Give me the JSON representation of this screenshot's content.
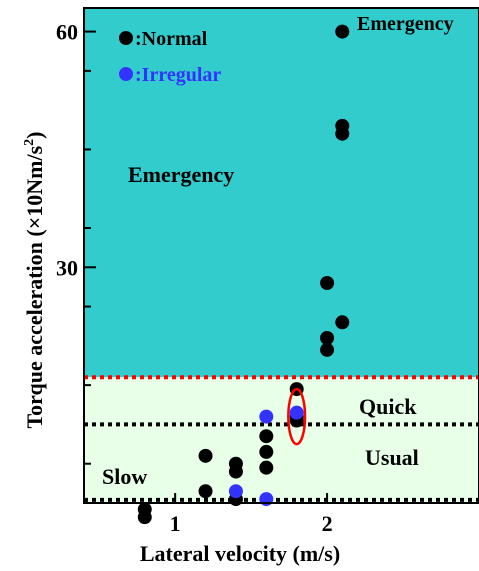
{
  "chart_data": {
    "type": "scatter",
    "xlabel": "Lateral velocity (m/s)",
    "ylabel_prefix": "Torque acceleration (×10Nm/s",
    "ylabel_sup": "2",
    "ylabel_suffix": ")",
    "xlim": [
      0.4,
      3.0
    ],
    "ylim": [
      0,
      63
    ],
    "x_ticks": [
      1,
      2
    ],
    "x_tick_labels": [
      "1",
      "2"
    ],
    "y_ticks": [
      30,
      60
    ],
    "y_tick_labels": [
      "30",
      "60"
    ],
    "legend": {
      "placement": "top-left",
      "entries": [
        {
          "marker_color": "#000000",
          "label": ":Normal",
          "text_color": "#000000"
        },
        {
          "marker_color": "#3333ff",
          "label": ":Irregular",
          "text_color": "#3333ff"
        }
      ]
    },
    "regions": [
      {
        "label": "Emergency",
        "y_from": 16,
        "y_to": 63,
        "color": "#33cccc"
      },
      {
        "label": "Quick",
        "y_from": 10,
        "y_to": 16,
        "color": "#e8ffe8"
      },
      {
        "label": "Usual",
        "y_from": 0,
        "y_to": 10,
        "color": "#e8ffe8"
      }
    ],
    "threshold_lines": [
      {
        "y": 16,
        "style": "dotted",
        "color": "#ff0000"
      },
      {
        "y": 10,
        "style": "dotted",
        "color": "#000000"
      },
      {
        "y": 0.4,
        "style": "dotted",
        "color": "#000000"
      }
    ],
    "annotations": [
      "Emergency",
      "Emergency",
      "Quick",
      "Usual",
      "Slow"
    ],
    "series": [
      {
        "name": "Normal",
        "color": "#000000",
        "points": [
          [
            2.1,
            60
          ],
          [
            2.1,
            48
          ],
          [
            2.1,
            47
          ],
          [
            2.0,
            28
          ],
          [
            2.1,
            23
          ],
          [
            2.0,
            21
          ],
          [
            2.0,
            19.5
          ],
          [
            1.8,
            14.5
          ],
          [
            1.8,
            11
          ],
          [
            1.8,
            10.5
          ],
          [
            1.6,
            8.5
          ],
          [
            1.6,
            6.5
          ],
          [
            1.6,
            4.5
          ],
          [
            1.4,
            5
          ],
          [
            1.4,
            4
          ],
          [
            1.4,
            0.5
          ],
          [
            1.2,
            6
          ],
          [
            1.2,
            1.5
          ],
          [
            0.8,
            -0.8
          ],
          [
            0.8,
            -1.8
          ]
        ]
      },
      {
        "name": "Irregular",
        "color": "#3333ff",
        "points": [
          [
            1.6,
            11
          ],
          [
            1.8,
            11.5
          ],
          [
            1.4,
            1.5
          ],
          [
            1.6,
            0.5
          ]
        ]
      }
    ],
    "highlight": {
      "shape": "ellipse",
      "color": "#ff0000",
      "cx": 1.8,
      "cy": 11,
      "rx": 0.055,
      "ry": 3.5
    }
  }
}
